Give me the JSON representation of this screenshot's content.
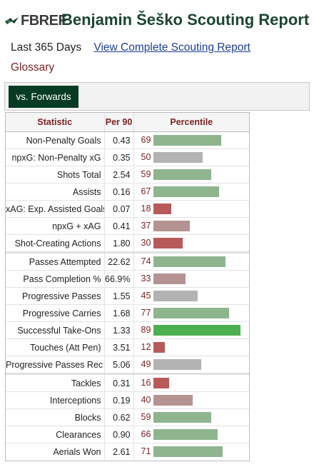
{
  "brand": {
    "name": "FBREF"
  },
  "page": {
    "title": "Benjamin Šeško Scouting Report",
    "period": "Last 365 Days",
    "full_report_link": "View Complete Scouting Report",
    "glossary_link": "Glossary"
  },
  "tabs": [
    {
      "label": "vs. Forwards",
      "active": true
    }
  ],
  "table": {
    "headers": {
      "statistic": "Statistic",
      "per90": "Per 90",
      "percentile": "Percentile"
    },
    "groups": [
      {
        "rows": [
          {
            "stat": "Non-Penalty Goals",
            "per90": "0.43",
            "pct": 69
          },
          {
            "stat": "npxG: Non-Penalty xG",
            "per90": "0.35",
            "pct": 50
          },
          {
            "stat": "Shots Total",
            "per90": "2.54",
            "pct": 59
          },
          {
            "stat": "Assists",
            "per90": "0.16",
            "pct": 67
          },
          {
            "stat": "xAG: Exp. Assisted Goals",
            "per90": "0.07",
            "pct": 18
          },
          {
            "stat": "npxG + xAG",
            "per90": "0.41",
            "pct": 37
          },
          {
            "stat": "Shot-Creating Actions",
            "per90": "1.80",
            "pct": 30
          }
        ]
      },
      {
        "rows": [
          {
            "stat": "Passes Attempted",
            "per90": "22.62",
            "pct": 74
          },
          {
            "stat": "Pass Completion %",
            "per90": "66.9%",
            "pct": 33
          },
          {
            "stat": "Progressive Passes",
            "per90": "1.55",
            "pct": 45
          },
          {
            "stat": "Progressive Carries",
            "per90": "1.68",
            "pct": 77
          },
          {
            "stat": "Successful Take-Ons",
            "per90": "1.33",
            "pct": 89
          },
          {
            "stat": "Touches (Att Pen)",
            "per90": "3.51",
            "pct": 12
          },
          {
            "stat": "Progressive Passes Rec",
            "per90": "5.06",
            "pct": 49
          }
        ]
      },
      {
        "rows": [
          {
            "stat": "Tackles",
            "per90": "0.31",
            "pct": 16
          },
          {
            "stat": "Interceptions",
            "per90": "0.19",
            "pct": 40
          },
          {
            "stat": "Blocks",
            "per90": "0.62",
            "pct": 59
          },
          {
            "stat": "Clearances",
            "per90": "0.90",
            "pct": 66
          },
          {
            "stat": "Aerials Won",
            "per90": "2.61",
            "pct": 71
          }
        ]
      }
    ]
  },
  "colors": {
    "title_green": "#1c4530",
    "tab_bg": "#063c24",
    "link_blue": "#1f3f99",
    "maroon": "#7a2323",
    "bar_red": "#b55555",
    "bar_grey": "#b3b3b3",
    "bar_green": "#56b356"
  }
}
